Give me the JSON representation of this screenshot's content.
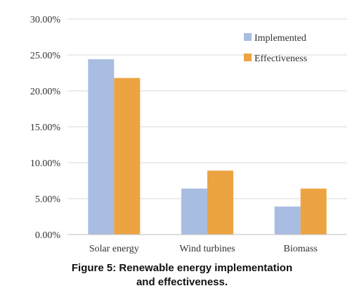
{
  "chart_data": {
    "type": "bar",
    "categories": [
      "Solar energy",
      "Wind turbines",
      "Biomass"
    ],
    "series": [
      {
        "name": "Implemented",
        "color": "#A9BCE1",
        "values": [
          24.4,
          6.4,
          3.9
        ]
      },
      {
        "name": "Effectiveness",
        "color": "#ECA443",
        "values": [
          21.8,
          8.9,
          6.4
        ]
      }
    ],
    "ylim": [
      0,
      30
    ],
    "yticks": [
      "0.00%",
      "5.00%",
      "10.00%",
      "15.00%",
      "20.00%",
      "25.00%",
      "30.00%"
    ],
    "grid": true,
    "legend_position": "top-right",
    "xlabel": "",
    "ylabel": ""
  },
  "caption": {
    "line1": "Figure 5: Renewable energy implementation",
    "line2": "and effectiveness."
  }
}
